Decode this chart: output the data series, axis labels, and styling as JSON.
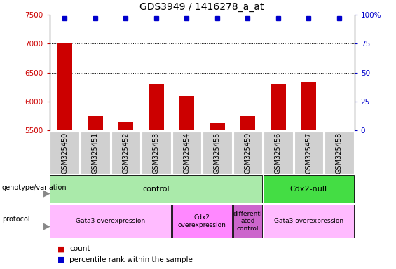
{
  "title": "GDS3949 / 1416278_a_at",
  "samples": [
    "GSM325450",
    "GSM325451",
    "GSM325452",
    "GSM325453",
    "GSM325454",
    "GSM325455",
    "GSM325459",
    "GSM325456",
    "GSM325457",
    "GSM325458"
  ],
  "counts": [
    7000,
    5750,
    5650,
    6300,
    6100,
    5630,
    5750,
    6300,
    6340,
    5500
  ],
  "ylim_left": [
    5500,
    7500
  ],
  "ylim_right": [
    0,
    100
  ],
  "yticks_left": [
    5500,
    6000,
    6500,
    7000,
    7500
  ],
  "yticks_right": [
    0,
    25,
    50,
    75,
    100
  ],
  "bar_color": "#cc0000",
  "dot_color": "#0000cc",
  "tick_label_color_left": "#cc0000",
  "tick_label_color_right": "#0000cc",
  "plot_bg": "#ffffff",
  "xtick_bg": "#d0d0d0",
  "genotype_groups": [
    {
      "label": "control",
      "start": 0,
      "end": 7,
      "color": "#aaeaaa"
    },
    {
      "label": "Cdx2-null",
      "start": 7,
      "end": 10,
      "color": "#44dd44"
    }
  ],
  "protocol_groups": [
    {
      "label": "Gata3 overexpression",
      "start": 0,
      "end": 4,
      "color": "#ffbbff"
    },
    {
      "label": "Cdx2\noverexpression",
      "start": 4,
      "end": 6,
      "color": "#ff88ff"
    },
    {
      "label": "differenti\nated\ncontrol",
      "start": 6,
      "end": 7,
      "color": "#cc66cc"
    },
    {
      "label": "Gata3 overexpression",
      "start": 7,
      "end": 10,
      "color": "#ffbbff"
    }
  ],
  "legend_count_color": "#cc0000",
  "legend_dot_color": "#0000cc",
  "title_fontsize": 10,
  "tick_fontsize": 7.5,
  "sample_fontsize": 7,
  "annot_fontsize": 7.5,
  "row_fontsize": 8
}
